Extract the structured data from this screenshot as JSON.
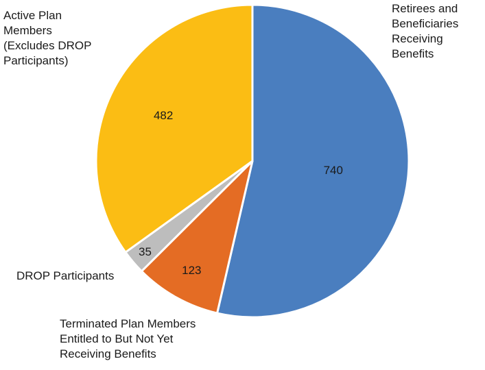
{
  "chart_data": {
    "type": "pie",
    "title": "",
    "categories": [
      "Retirees and Beneficiaries Receiving Benefits",
      "Terminated Plan Members Entitled to But Not Yet Receiving Benefits",
      "DROP Participants",
      "Active Plan Members (Excludes DROP Participants)"
    ],
    "category_label_lines": [
      [
        "Retirees and",
        "Beneficiaries",
        "Receiving",
        "Benefits"
      ],
      [
        "Terminated Plan Members",
        "Entitled to But Not Yet",
        "Receiving Benefits"
      ],
      [
        "DROP Participants"
      ],
      [
        "Active Plan",
        "Members",
        "(Excludes DROP",
        "Participants)"
      ]
    ],
    "values": [
      740,
      123,
      35,
      482
    ],
    "data_labels": [
      "740",
      "123",
      "35",
      "482"
    ],
    "colors": [
      "#4a7ebf",
      "#e46c24",
      "#bdbdbd",
      "#fbbd14"
    ],
    "start_angle": "12 o'clock",
    "direction": "clockwise",
    "legend": "none"
  }
}
